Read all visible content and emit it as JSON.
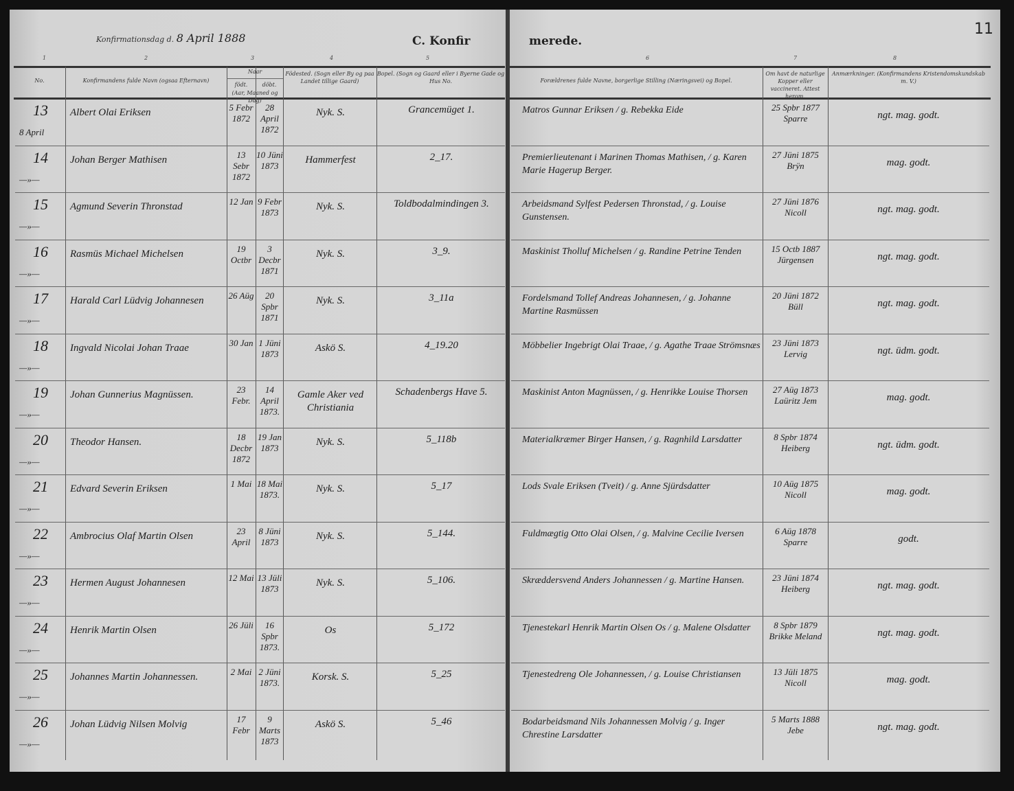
{
  "header": {
    "confirmation_label": "Konfirmationsdag d.",
    "confirmation_date": "8 April 1888",
    "title_left": "C. Konfir",
    "title_right": "merede.",
    "page_number": "11",
    "column_numbers": [
      "1",
      "2",
      "3",
      "4",
      "5",
      "6",
      "7",
      "8"
    ],
    "columns": {
      "no": "No.",
      "name": "Konfirmandens fulde Navn (ogsaa Efternavn)",
      "naar": "Naar",
      "fodt": "födt.",
      "dobt": "döbt.",
      "naar_sub": "(Aar, Maaned og Dag)",
      "fodested": "Födested. (Sogn eller By og paa Landet tillige Gaard)",
      "bopel": "Bopel. (Sogn og Gaard eller i Byerne Gade og Hus No.",
      "parents": "Forældrenes fulde Navne, borgerlige Stilling (Næringsvei) og Bopel.",
      "kopper": "Om havt de naturlige Kopper eller vaccineret. Attest herom.",
      "anm": "Anmærkninger. (Konfirmandens Kristendomskundskab m. V.)"
    }
  },
  "rows": [
    {
      "no": "13",
      "date": "8 April",
      "name": "Albert Olai Eriksen",
      "born": "5 Febr 1872",
      "baptized": "28 April 1872",
      "birthplace": "Nyk. S.",
      "residence": "Grancemüget 1.",
      "parents": "Matros Gunnar Eriksen / g. Rebekka Eide",
      "vacc": "25 Spbr 1877 Sparre",
      "remarks": "ngt. mag. godt."
    },
    {
      "no": "14",
      "date": "—»—",
      "name": "Johan Berger Mathisen",
      "born": "13 Sebr 1872",
      "baptized": "10 Jüni 1873",
      "birthplace": "Hammerfest",
      "residence": "2_17.",
      "parents": "Premierlieutenant i Marinen Thomas Mathisen, / g. Karen Marie Hagerup Berger.",
      "vacc": "27 Jüni 1875 Brÿn",
      "remarks": "mag. godt."
    },
    {
      "no": "15",
      "date": "—»—",
      "name": "Agmund Severin Thronstad",
      "born": "12 Jan",
      "baptized": "9 Febr 1873",
      "birthplace": "Nyk. S.",
      "residence": "Toldbodalmindingen 3.",
      "parents": "Arbeidsmand Sylfest Pedersen Thronstad, / g. Louise Gunstensen.",
      "vacc": "27 Jüni 1876 Nicoll",
      "remarks": "ngt. mag. godt."
    },
    {
      "no": "16",
      "date": "—»—",
      "name": "Rasmüs Michael Michelsen",
      "born": "19 Octbr",
      "baptized": "3 Decbr 1871",
      "birthplace": "Nyk. S.",
      "residence": "3_9.",
      "parents": "Maskinist Tholluf Michelsen / g. Randine Petrine Tenden",
      "vacc": "15 Octb 1887 Jürgensen",
      "remarks": "ngt. mag. godt."
    },
    {
      "no": "17",
      "date": "—»—",
      "name": "Harald Carl Lüdvig Johannesen",
      "born": "26 Aüg",
      "baptized": "20 Spbr 1871",
      "birthplace": "Nyk. S.",
      "residence": "3_11a",
      "parents": "Fordelsmand Tollef Andreas Johannesen, / g. Johanne Martine Rasmüssen",
      "vacc": "20 Jüni 1872 Büll",
      "remarks": "ngt. mag. godt."
    },
    {
      "no": "18",
      "date": "—»—",
      "name": "Ingvald Nicolai Johan Traae",
      "born": "30 Jan",
      "baptized": "1 Jüni 1873",
      "birthplace": "Askö S.",
      "residence": "4_19.20",
      "parents": "Möbbelier Ingebrigt Olai Traae, / g. Agathe Traae Strömsnæs",
      "vacc": "23 Jüni 1873 Lervig",
      "remarks": "ngt. üdm. godt."
    },
    {
      "no": "19",
      "date": "—»—",
      "name": "Johan Gunnerius Magnüssen.",
      "born": "23 Febr.",
      "baptized": "14 April 1873.",
      "birthplace": "Gamle Aker ved Christiania",
      "residence": "Schadenbergs Have 5.",
      "parents": "Maskinist Anton Magnüssen, / g. Henrikke Louise Thorsen",
      "vacc": "27 Aüg 1873 Laüritz Jem",
      "remarks": "mag. godt."
    },
    {
      "no": "20",
      "date": "—»—",
      "name": "Theodor Hansen.",
      "born": "18 Decbr 1872",
      "baptized": "19 Jan 1873",
      "birthplace": "Nyk. S.",
      "residence": "5_118b",
      "parents": "Materialkræmer Birger Hansen, / g. Ragnhild Larsdatter",
      "vacc": "8 Spbr 1874 Heiberg",
      "remarks": "ngt. üdm. godt."
    },
    {
      "no": "21",
      "date": "—»—",
      "name": "Edvard Severin Eriksen",
      "born": "1 Mai",
      "baptized": "18 Mai 1873.",
      "birthplace": "Nyk. S.",
      "residence": "5_17",
      "parents": "Lods Svale Eriksen (Tveit) / g. Anne Sjürdsdatter",
      "vacc": "10 Aüg 1875 Nicoll",
      "remarks": "mag. godt."
    },
    {
      "no": "22",
      "date": "—»—",
      "name": "Ambrocius Olaf Martin Olsen",
      "born": "23 April",
      "baptized": "8 Jüni 1873",
      "birthplace": "Nyk. S.",
      "residence": "5_144.",
      "parents": "Fuldmægtig Otto Olai Olsen, / g. Malvine Cecilie Iversen",
      "vacc": "6 Aüg 1878 Sparre",
      "remarks": "godt."
    },
    {
      "no": "23",
      "date": "—»—",
      "name": "Hermen August Johannesen",
      "born": "12 Mai",
      "baptized": "13 Jüli 1873",
      "birthplace": "Nyk. S.",
      "residence": "5_106.",
      "parents": "Skræddersvend Anders Johannessen / g. Martine Hansen.",
      "vacc": "23 Jüni 1874 Heiberg",
      "remarks": "ngt. mag. godt."
    },
    {
      "no": "24",
      "date": "—»—",
      "name": "Henrik Martin Olsen",
      "born": "26 Jüli",
      "baptized": "16 Spbr 1873.",
      "birthplace": "Os",
      "residence": "5_172",
      "parents": "Tjenestekarl Henrik Martin Olsen Os / g. Malene Olsdatter",
      "vacc": "8 Spbr 1879 Brikke Meland",
      "remarks": "ngt. mag. godt."
    },
    {
      "no": "25",
      "date": "—»—",
      "name": "Johannes Martin Johannessen.",
      "born": "2 Mai",
      "baptized": "2 Jüni 1873.",
      "birthplace": "Korsk. S.",
      "residence": "5_25",
      "parents": "Tjenestedreng Ole Johannessen, / g. Louise Christiansen",
      "vacc": "13 Jüli 1875 Nicoll",
      "remarks": "mag. godt."
    },
    {
      "no": "26",
      "date": "—»—",
      "name": "Johan Lüdvig Nilsen Molvig",
      "born": "17 Febr",
      "baptized": "9 Marts 1873",
      "birthplace": "Askö S.",
      "residence": "5_46",
      "parents": "Bodarbeidsmand Nils Johannessen Molvig / g. Inger Chrestine Larsdatter",
      "vacc": "5 Marts 1888 Jebe",
      "remarks": "ngt. mag. godt."
    }
  ]
}
